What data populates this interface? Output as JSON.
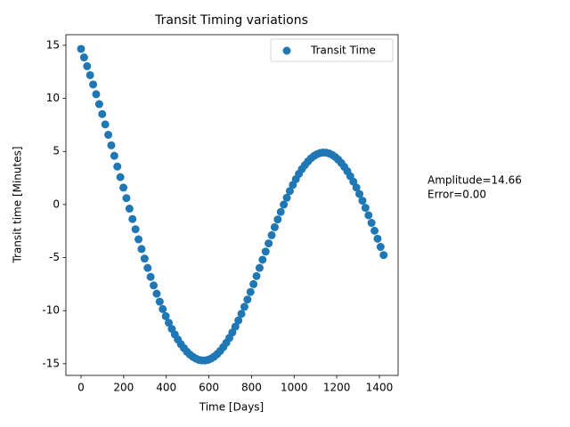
{
  "chart_data": {
    "type": "scatter",
    "title": "Transit Timing variations",
    "x_label": "Time [Days]",
    "y_label": "Transit time [Minutes]",
    "annotation": [
      "Amplitude=14.66",
      "Error=0.00"
    ],
    "legend": "upper right",
    "xlim": [
      -71,
      1488
    ],
    "ylim": [
      -16.1,
      16.0
    ],
    "xticks": [
      0,
      200,
      400,
      600,
      800,
      1000,
      1200,
      1400
    ],
    "yticks": [
      -15,
      -10,
      -5,
      0,
      5,
      10,
      15
    ],
    "series": [
      {
        "name": "Transit Time",
        "color": "#1f77b4",
        "x": [
          0,
          14.2,
          28.4,
          42.6,
          56.8,
          71,
          85.2,
          99.4,
          113.6,
          127.8,
          142,
          156.2,
          170.4,
          184.6,
          198.8,
          213,
          227.2,
          241.4,
          255.6,
          269.8,
          284,
          298.2,
          312.4,
          326.6,
          340.8,
          355,
          369.2,
          383.4,
          397.6,
          411.8,
          426,
          440.2,
          454.4,
          468.6,
          482.8,
          497,
          511.2,
          525.4,
          539.6,
          553.8,
          568,
          582.2,
          596.4,
          610.6,
          624.8,
          639,
          653.2,
          667.4,
          681.6,
          695.8,
          710,
          724.2,
          738.4,
          752.6,
          766.8,
          781,
          795.2,
          809.4,
          823.6,
          837.8,
          852,
          866.2,
          880.4,
          894.6,
          908.8,
          923,
          937.2,
          951.4,
          965.6,
          979.8,
          994,
          1008.2,
          1022.4,
          1036.6,
          1050.8,
          1065,
          1079.2,
          1093.4,
          1107.6,
          1121.8,
          1136,
          1150.2,
          1164.4,
          1178.6,
          1192.8,
          1207,
          1221.2,
          1235.4,
          1249.6,
          1263.8,
          1278,
          1292.2,
          1306.4,
          1320.6,
          1334.8,
          1349,
          1363.2,
          1377.4,
          1391.6,
          1405.8,
          1420
        ],
        "values": [
          14.66,
          13.86,
          13.03,
          12.19,
          11.31,
          10.39,
          9.46,
          8.52,
          7.55,
          6.57,
          5.58,
          4.59,
          3.58,
          2.58,
          1.59,
          0.6,
          -0.39,
          -1.37,
          -2.33,
          -3.28,
          -4.19,
          -5.09,
          -5.97,
          -6.82,
          -7.62,
          -8.4,
          -9.15,
          -9.85,
          -10.52,
          -11.14,
          -11.72,
          -12.24,
          -12.72,
          -13.16,
          -13.53,
          -13.87,
          -14.14,
          -14.36,
          -14.52,
          -14.64,
          -14.69,
          -14.69,
          -14.63,
          -14.51,
          -14.33,
          -14.09,
          -13.79,
          -13.43,
          -13.03,
          -12.57,
          -12.06,
          -11.51,
          -10.92,
          -10.3,
          -9.64,
          -8.95,
          -8.24,
          -7.5,
          -6.74,
          -5.97,
          -5.2,
          -4.43,
          -3.66,
          -2.89,
          -2.14,
          -1.41,
          -0.7,
          -0.01,
          0.64,
          1.27,
          1.85,
          2.39,
          2.89,
          3.34,
          3.72,
          4.06,
          4.35,
          4.58,
          4.74,
          4.85,
          4.9,
          4.88,
          4.81,
          4.68,
          4.48,
          4.23,
          3.92,
          3.55,
          3.14,
          2.67,
          2.15,
          1.6,
          0.99,
          0.36,
          -0.31,
          -1.01,
          -1.73,
          -2.47,
          -3.22,
          -3.99,
          -4.76
        ]
      }
    ]
  }
}
